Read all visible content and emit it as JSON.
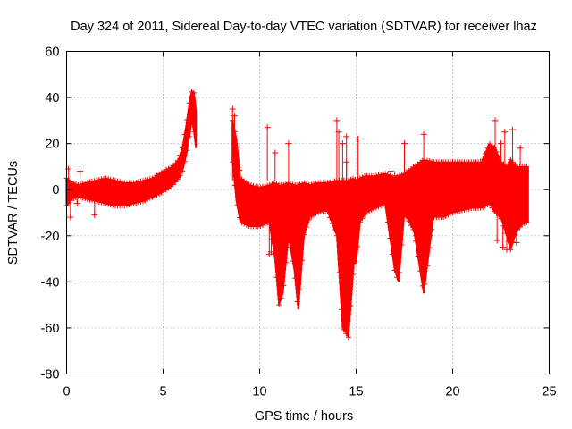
{
  "chart_data": {
    "type": "scatter",
    "title": "Day 324 of 2011, Sidereal Day-to-day VTEC variation (SDTVAR) for receiver lhaz",
    "xlabel": "GPS time / hours",
    "ylabel": "SDTVAR / TECUs",
    "xlim": [
      0,
      25
    ],
    "ylim": [
      -80,
      60
    ],
    "xticks": [
      0,
      5,
      10,
      15,
      20,
      25
    ],
    "yticks": [
      -80,
      -60,
      -40,
      -20,
      0,
      20,
      40,
      60
    ],
    "grid": true,
    "marker": "+",
    "series": [
      {
        "name": "SDTVAR",
        "color": "#ff0000",
        "bands": [
          {
            "x": [
              0.0,
              0.3,
              0.6,
              1.0,
              1.5,
              2.0,
              2.5,
              3.0,
              3.5,
              4.0,
              4.5,
              5.0,
              5.5,
              5.8,
              6.0,
              6.2,
              6.4,
              6.5,
              6.6,
              6.7
            ],
            "lo": [
              -7,
              -4,
              -3,
              -4,
              -5,
              -6,
              -7,
              -7,
              -6,
              -5,
              -3,
              -1,
              2,
              5,
              8,
              15,
              25,
              30,
              25,
              18
            ],
            "hi": [
              5,
              3,
              2,
              3,
              4,
              5,
              4,
              3,
              3,
              4,
              5,
              8,
              10,
              13,
              18,
              28,
              40,
              43,
              42,
              35
            ]
          },
          {
            "x": [
              8.6,
              8.8,
              9.0,
              9.5,
              10.0,
              10.5,
              10.8,
              11.0,
              11.2,
              11.5,
              11.8,
              12.0,
              12.3,
              12.6,
              13.0,
              13.5,
              14.0,
              14.3,
              14.6,
              14.9,
              15.0,
              15.2,
              15.5,
              16.0,
              16.5,
              17.0,
              17.2,
              17.5,
              18.0,
              18.5,
              19.0,
              19.5,
              20.0,
              20.5,
              21.0,
              21.5,
              21.9,
              22.2,
              22.5,
              22.8,
              23.0,
              23.3,
              23.6,
              23.9
            ],
            "lo": [
              12,
              -5,
              -14,
              -16,
              -16,
              -14,
              -30,
              -50,
              -45,
              -20,
              -35,
              -52,
              -20,
              -12,
              -10,
              -9,
              -20,
              -60,
              -64,
              -30,
              -32,
              -14,
              -10,
              -8,
              -6,
              -35,
              -40,
              -10,
              -18,
              -45,
              -12,
              -12,
              -10,
              -9,
              -8,
              -8,
              -6,
              -10,
              -12,
              -20,
              -26,
              -18,
              -15,
              -14
            ],
            "hi": [
              30,
              22,
              5,
              2,
              1,
              2,
              3,
              2,
              2,
              3,
              2,
              2,
              3,
              2,
              3,
              3,
              4,
              4,
              4,
              5,
              4,
              5,
              6,
              6,
              7,
              5,
              6,
              7,
              10,
              13,
              12,
              12,
              12,
              12,
              12,
              12,
              20,
              18,
              12,
              10,
              13,
              10,
              10,
              10
            ]
          }
        ],
        "outliers": [
          {
            "x": 0.1,
            "y": 9
          },
          {
            "x": 0.2,
            "y": -12
          },
          {
            "x": 0.55,
            "y": -6
          },
          {
            "x": 0.7,
            "y": 8
          },
          {
            "x": 1.45,
            "y": -11
          },
          {
            "x": 1.5,
            "y": 0
          },
          {
            "x": 8.6,
            "y": 35
          },
          {
            "x": 8.7,
            "y": 32
          },
          {
            "x": 10.4,
            "y": 27
          },
          {
            "x": 10.5,
            "y": -28
          },
          {
            "x": 10.6,
            "y": -27
          },
          {
            "x": 10.8,
            "y": 16
          },
          {
            "x": 11.5,
            "y": 20
          },
          {
            "x": 14.0,
            "y": 30
          },
          {
            "x": 14.1,
            "y": 25
          },
          {
            "x": 14.3,
            "y": 20
          },
          {
            "x": 14.5,
            "y": 23
          },
          {
            "x": 14.5,
            "y": 12
          },
          {
            "x": 15.1,
            "y": 22
          },
          {
            "x": 15.4,
            "y": -10
          },
          {
            "x": 16.8,
            "y": 8
          },
          {
            "x": 17.0,
            "y": 6
          },
          {
            "x": 17.2,
            "y": -20
          },
          {
            "x": 17.5,
            "y": 20
          },
          {
            "x": 17.8,
            "y": 6
          },
          {
            "x": 18.1,
            "y": -20
          },
          {
            "x": 18.3,
            "y": 10
          },
          {
            "x": 18.5,
            "y": 24
          },
          {
            "x": 18.6,
            "y": -15
          },
          {
            "x": 18.8,
            "y": -20
          },
          {
            "x": 22.0,
            "y": 18
          },
          {
            "x": 22.2,
            "y": 30
          },
          {
            "x": 22.3,
            "y": -22
          },
          {
            "x": 22.5,
            "y": 20
          },
          {
            "x": 22.6,
            "y": -25
          },
          {
            "x": 22.7,
            "y": 25
          },
          {
            "x": 22.8,
            "y": -26
          },
          {
            "x": 23.1,
            "y": 26
          },
          {
            "x": 23.3,
            "y": -23
          },
          {
            "x": 23.5,
            "y": 18
          },
          {
            "x": 23.8,
            "y": 8
          }
        ]
      }
    ]
  }
}
